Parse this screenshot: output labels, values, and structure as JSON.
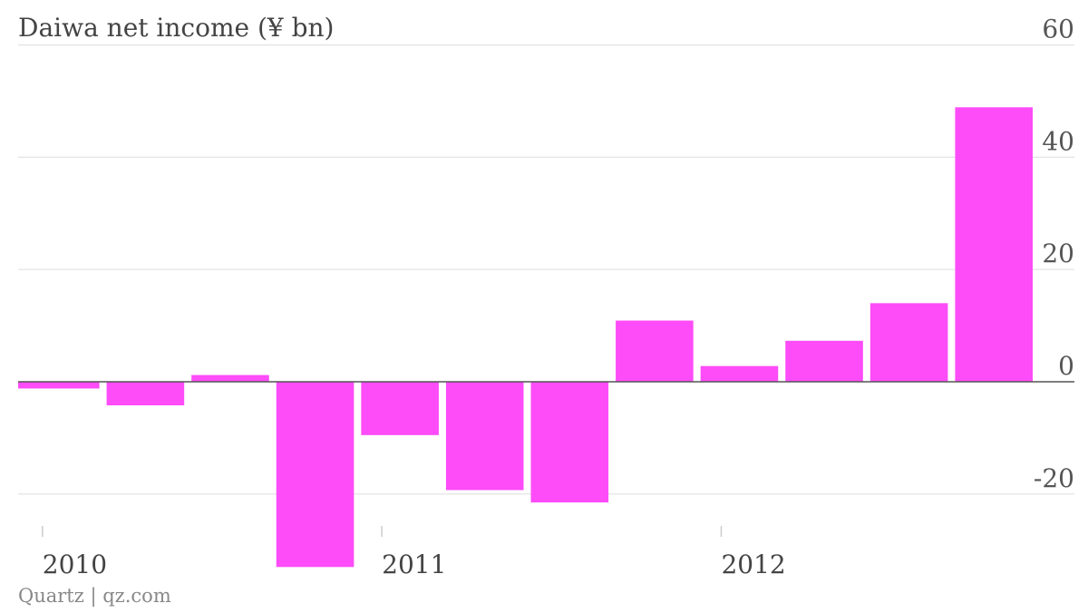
{
  "chart_data": {
    "type": "bar",
    "title": "Daiwa net income (¥ bn)",
    "source": "Quartz | qz.com",
    "categories": [
      "2010 Q1",
      "2010 Q2",
      "2010 Q3",
      "2010 Q4",
      "2011 Q1",
      "2011 Q2",
      "2011 Q3",
      "2011 Q4",
      "2012 Q1",
      "2012 Q2",
      "2012 Q3",
      "2012 Q4"
    ],
    "values": [
      -1.2,
      -4.2,
      1.2,
      -33.0,
      -9.5,
      -19.3,
      -21.5,
      10.9,
      2.8,
      7.3,
      14.0,
      48.9
    ],
    "x_tick_labels": [
      {
        "label": "2010",
        "index": 0
      },
      {
        "label": "2011",
        "index": 4
      },
      {
        "label": "2012",
        "index": 8
      }
    ],
    "y_ticks": [
      60,
      40,
      20,
      0,
      -20
    ],
    "ylim": [
      -34,
      60
    ],
    "yaxis_side": "right",
    "grid": true,
    "bar_color": "#fd4cf8"
  }
}
